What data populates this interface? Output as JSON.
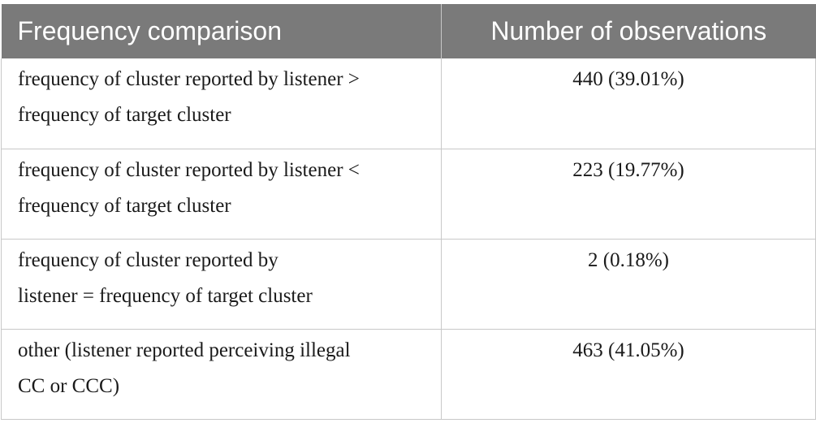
{
  "table": {
    "headers": {
      "comparison": "Frequency comparison",
      "observations": "Number of observations"
    },
    "rows": [
      {
        "comparison": "frequency of cluster reported by listener >\nfrequency of target cluster",
        "observations": "440 (39.01%)"
      },
      {
        "comparison": "frequency of cluster reported by listener <\nfrequency of target cluster",
        "observations": "223 (19.77%)"
      },
      {
        "comparison": "frequency of cluster reported by\nlistener = frequency of target cluster",
        "observations": "2 (0.18%)"
      },
      {
        "comparison": "other (listener reported perceiving illegal\nCC or CCC)",
        "observations": "463 (41.05%)"
      }
    ]
  },
  "colors": {
    "header_bg": "#7a7a7a",
    "header_text": "#ffffff",
    "border": "#c8c8c8",
    "body_text": "#1a1a1a"
  }
}
